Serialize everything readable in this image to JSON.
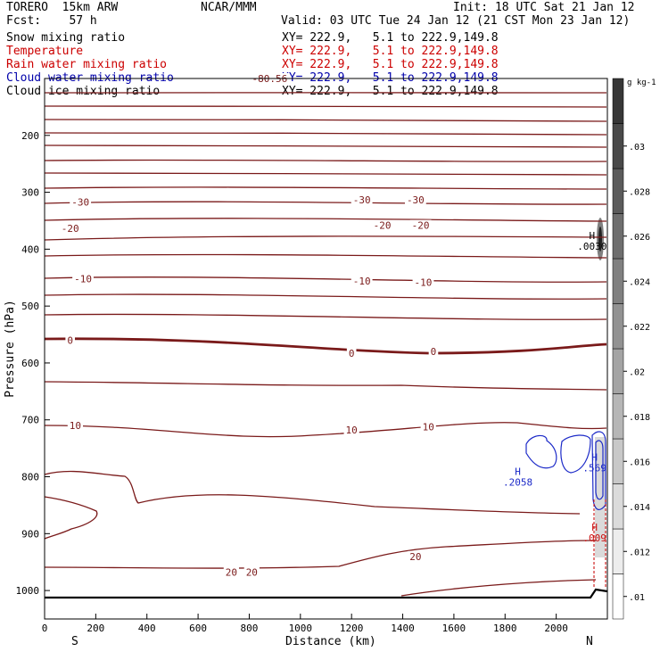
{
  "header": {
    "model": "TORERO  15km ARW",
    "org": "NCAR/MMM",
    "init": "Init: 18 UTC Sat 21 Jan 12",
    "fcst": "Fcst:    57 h",
    "valid": "Valid: 03 UTC Tue 24 Jan 12 (21 CST Mon 23 Jan 12)"
  },
  "fields": [
    {
      "name": "Snow mixing ratio",
      "xy": "XY= 222.9,   5.1 to 222.9,149.8",
      "color": "#000000"
    },
    {
      "name": "Temperature",
      "xy": "XY= 222.9,   5.1 to 222.9,149.8",
      "color": "#cc0000"
    },
    {
      "name": "Rain water mixing ratio",
      "xy": "XY= 222.9,   5.1 to 222.9,149.8",
      "color": "#cc0000"
    },
    {
      "name": "Cloud water mixing ratio",
      "xy": "XY= 222.9,   5.1 to 222.9,149.8",
      "color": "#0000aa"
    },
    {
      "name": "Cloud ice mixing ratio",
      "xy": "XY= 222.9,   5.1 to 222.9,149.8",
      "color": "#000000"
    }
  ],
  "colors": {
    "temperature": "#7a1a1a",
    "cloud_water": "#1c2ac8",
    "rain": "#cc1111",
    "snow_shade": "#555555"
  },
  "chart_data": {
    "type": "cross-section contour",
    "xlabel": "Distance (km)",
    "ylabel": "Pressure (hPa)",
    "xlim": [
      0,
      2200
    ],
    "ylim": [
      1050,
      100
    ],
    "x_ticks": [
      0,
      200,
      400,
      600,
      800,
      1000,
      1200,
      1400,
      1600,
      1800,
      2000
    ],
    "y_ticks": [
      200,
      300,
      400,
      500,
      600,
      700,
      800,
      900,
      1000
    ],
    "x_end_labels": {
      "left": "S",
      "right": "N"
    },
    "temperature_labels": [
      {
        "text": "-80.56",
        "x": 880,
        "p": 100
      },
      {
        "text": "-30",
        "x": 140,
        "p": 317
      },
      {
        "text": "-30",
        "x": 1240,
        "p": 313
      },
      {
        "text": "-30",
        "x": 1450,
        "p": 313
      },
      {
        "text": "-20",
        "x": 100,
        "p": 363
      },
      {
        "text": "-20",
        "x": 1320,
        "p": 358
      },
      {
        "text": "-20",
        "x": 1470,
        "p": 358
      },
      {
        "text": "-10",
        "x": 150,
        "p": 452
      },
      {
        "text": "-10",
        "x": 1240,
        "p": 456
      },
      {
        "text": "-10",
        "x": 1480,
        "p": 458
      },
      {
        "text": "0",
        "x": 100,
        "p": 560
      },
      {
        "text": "0",
        "x": 1200,
        "p": 583
      },
      {
        "text": "0",
        "x": 1520,
        "p": 580
      },
      {
        "text": "10",
        "x": 120,
        "p": 710
      },
      {
        "text": "10",
        "x": 1200,
        "p": 718
      },
      {
        "text": "10",
        "x": 1500,
        "p": 712
      },
      {
        "text": "20",
        "x": 1450,
        "p": 940
      },
      {
        "text": "20",
        "x": 730,
        "p": 968
      },
      {
        "text": "20",
        "x": 810,
        "p": 968
      }
    ],
    "maxima": [
      {
        "label": "H",
        "value": ".0030",
        "field": "Cloud ice mixing ratio",
        "x": 2140,
        "p": 382
      },
      {
        "label": "H",
        "value": ".2058",
        "field": "Cloud water mixing ratio",
        "x": 1850,
        "p": 797
      },
      {
        "label": "H",
        "value": ".569",
        "field": "Cloud water mixing ratio",
        "x": 2150,
        "p": 772
      },
      {
        "label": "H",
        "value": ".009",
        "field": "Rain water mixing ratio",
        "x": 2150,
        "p": 895
      }
    ],
    "colorbar": {
      "unit": "g kg-1",
      "tick_labels": [
        ".01",
        ".012",
        ".014",
        ".016",
        ".018",
        ".02",
        ".022",
        ".024",
        ".026",
        ".028",
        ".03"
      ],
      "levels": [
        0.01,
        0.012,
        0.014,
        0.016,
        0.018,
        0.02,
        0.022,
        0.024,
        0.026,
        0.028,
        0.03,
        0.032
      ]
    }
  }
}
